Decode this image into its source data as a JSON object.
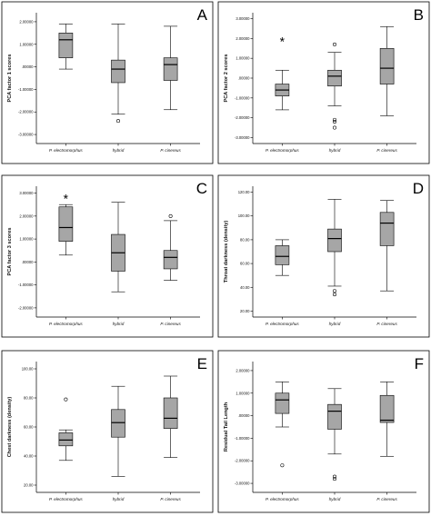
{
  "chart_data": [
    {
      "panel": "A",
      "type": "boxplot",
      "ylabel": "PCA factor 1 scores",
      "categories": [
        "P. electromorphus",
        "hybrid",
        "P. cinereus"
      ],
      "ylim": [
        -3.4,
        2.4
      ],
      "yticks": [
        -3.0,
        -2.0,
        -1.0,
        0.0,
        1.0,
        2.0
      ],
      "ytick_labels": [
        "-3.00000",
        "-2.00000",
        "-1.00000",
        ".00000",
        "1.00000",
        "2.00000"
      ],
      "boxes": [
        {
          "min": -0.1,
          "q1": 0.4,
          "median": 1.2,
          "q3": 1.5,
          "max": 1.9,
          "outliers": [],
          "extremes": []
        },
        {
          "min": -2.1,
          "q1": -0.7,
          "median": -0.1,
          "q3": 0.3,
          "max": 1.9,
          "outliers": [
            -2.4
          ],
          "extremes": []
        },
        {
          "min": -1.9,
          "q1": -0.6,
          "median": 0.1,
          "q3": 0.4,
          "max": 1.8,
          "outliers": [],
          "extremes": []
        }
      ]
    },
    {
      "panel": "B",
      "type": "boxplot",
      "ylabel": "PCA factor 2 scores",
      "categories": [
        "P. electromorphus",
        "hybrid",
        "P. cinereus"
      ],
      "ylim": [
        -3.3,
        3.3
      ],
      "yticks": [
        -3.0,
        -2.0,
        -1.0,
        0.0,
        1.0,
        2.0,
        3.0
      ],
      "ytick_labels": [
        "-3.00000",
        "-2.00000",
        "-1.00000",
        ".00000",
        "1.00000",
        "2.00000",
        "3.00000"
      ],
      "boxes": [
        {
          "min": -1.6,
          "q1": -0.9,
          "median": -0.6,
          "q3": -0.3,
          "max": 0.4,
          "outliers": [],
          "extremes": [
            1.9
          ]
        },
        {
          "min": -1.4,
          "q1": -0.4,
          "median": 0.1,
          "q3": 0.4,
          "max": 1.3,
          "outliers": [
            1.7,
            -2.1,
            -2.2,
            -2.5
          ],
          "extremes": []
        },
        {
          "min": -1.9,
          "q1": -0.3,
          "median": 0.5,
          "q3": 1.5,
          "max": 2.6,
          "outliers": [],
          "extremes": []
        }
      ]
    },
    {
      "panel": "C",
      "type": "boxplot",
      "ylabel": "PCA factor 3 scores",
      "categories": [
        "P. electromorphus",
        "hybrid",
        "P. cinereus"
      ],
      "ylim": [
        -2.4,
        3.3
      ],
      "yticks": [
        -2.0,
        -1.0,
        0.0,
        1.0,
        2.0,
        3.0
      ],
      "ytick_labels": [
        "-2.00000",
        "-1.00000",
        ".00000",
        "1.00000",
        "2.00000",
        "3.00000"
      ],
      "boxes": [
        {
          "min": 0.3,
          "q1": 0.9,
          "median": 1.5,
          "q3": 2.4,
          "max": 2.5,
          "outliers": [],
          "extremes": [
            2.8
          ]
        },
        {
          "min": -1.3,
          "q1": -0.4,
          "median": 0.4,
          "q3": 1.2,
          "max": 2.6,
          "outliers": [],
          "extremes": []
        },
        {
          "min": -0.8,
          "q1": -0.3,
          "median": 0.2,
          "q3": 0.5,
          "max": 1.8,
          "outliers": [
            2.0
          ],
          "extremes": []
        }
      ]
    },
    {
      "panel": "D",
      "type": "boxplot",
      "ylabel": "Throat darkness (density)",
      "categories": [
        "P. electromorphus",
        "hybrid",
        "P. cinereus"
      ],
      "ylim": [
        15,
        125
      ],
      "yticks": [
        20,
        40,
        60,
        80,
        100,
        120
      ],
      "ytick_labels": [
        "20.00",
        "40.00",
        "60.00",
        "80.00",
        "100.00",
        "120.00"
      ],
      "boxes": [
        {
          "min": 50,
          "q1": 59,
          "median": 66,
          "q3": 75,
          "max": 80,
          "outliers": [],
          "extremes": []
        },
        {
          "min": 41,
          "q1": 70,
          "median": 81,
          "q3": 89,
          "max": 114,
          "outliers": [
            37,
            34
          ],
          "extremes": []
        },
        {
          "min": 37,
          "q1": 75,
          "median": 94,
          "q3": 103,
          "max": 113,
          "outliers": [],
          "extremes": []
        }
      ]
    },
    {
      "panel": "E",
      "type": "boxplot",
      "ylabel": "Chest darkness (density)",
      "categories": [
        "P. electromorphus",
        "hybrid",
        "P. cinereus"
      ],
      "ylim": [
        15,
        105
      ],
      "yticks": [
        20,
        40,
        60,
        80,
        100
      ],
      "ytick_labels": [
        "20.00",
        "40.00",
        "60.00",
        "80.00",
        "100.00"
      ],
      "boxes": [
        {
          "min": 37,
          "q1": 47,
          "median": 51,
          "q3": 56,
          "max": 58,
          "outliers": [
            79
          ],
          "extremes": []
        },
        {
          "min": 26,
          "q1": 53,
          "median": 63,
          "q3": 72,
          "max": 88,
          "outliers": [],
          "extremes": []
        },
        {
          "min": 39,
          "q1": 59,
          "median": 66,
          "q3": 80,
          "max": 95,
          "outliers": [],
          "extremes": []
        }
      ]
    },
    {
      "panel": "F",
      "type": "boxplot",
      "ylabel": "Residual Tail Length",
      "categories": [
        "P. electromorphus",
        "hybrid",
        "P. cinereus"
      ],
      "ylim": [
        -3.4,
        2.4
      ],
      "yticks": [
        -3.0,
        -2.0,
        -1.0,
        0.0,
        1.0,
        2.0
      ],
      "ytick_labels": [
        "-3.00000",
        "-2.00000",
        "-1.00000",
        ".00000",
        "1.00000",
        "2.00000"
      ],
      "boxes": [
        {
          "min": -0.5,
          "q1": 0.1,
          "median": 0.7,
          "q3": 1.0,
          "max": 1.5,
          "outliers": [
            -2.2
          ],
          "extremes": []
        },
        {
          "min": -1.7,
          "q1": -0.6,
          "median": 0.2,
          "q3": 0.5,
          "max": 1.2,
          "outliers": [
            -2.7,
            -2.8
          ],
          "extremes": []
        },
        {
          "min": -1.8,
          "q1": -0.3,
          "median": -0.2,
          "q3": 0.9,
          "max": 1.5,
          "outliers": [],
          "extremes": []
        }
      ]
    }
  ]
}
